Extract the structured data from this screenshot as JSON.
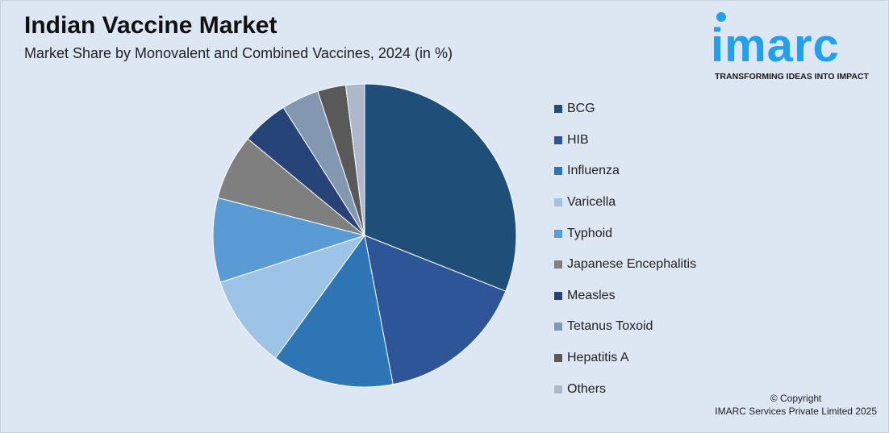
{
  "header": {
    "title": "Indian Vaccine Market",
    "subtitle": "Market Share by Monovalent and Combined Vaccines, 2024 (in %)"
  },
  "logo": {
    "word": "imarc",
    "tagline": "TRANSFORMING IDEAS INTO IMPACT"
  },
  "footer": {
    "copyright": "© Copyright",
    "company": "IMARC Services Private Limited 2025"
  },
  "chart_data": {
    "type": "pie",
    "title": "Indian Vaccine Market",
    "subtitle": "Market Share by Monovalent and Combined Vaccines, 2024 (in %)",
    "legend_position": "right",
    "start": "top, clockwise",
    "categories": [
      "BCG",
      "HIB",
      "Influenza",
      "Varicella",
      "Typhoid",
      "Japanese Encephalitis",
      "Measles",
      "Tetanus Toxoid",
      "Hepatitis A",
      "Others"
    ],
    "values": [
      31,
      16,
      13,
      10,
      9,
      7,
      5,
      4,
      3,
      2
    ],
    "colors": [
      "#1f4e79",
      "#2e5597",
      "#2e75b6",
      "#9dc3e6",
      "#5b9bd5",
      "#7f7f7f",
      "#264478",
      "#8497b0",
      "#595959",
      "#adb9ca"
    ]
  }
}
